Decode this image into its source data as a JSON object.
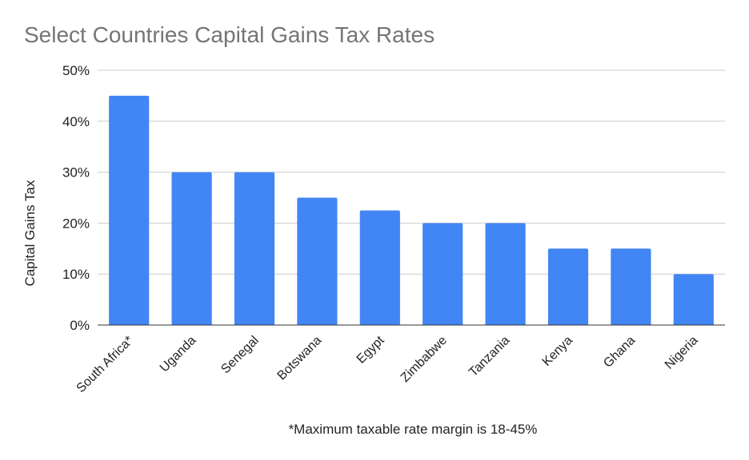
{
  "chart_data": {
    "type": "bar",
    "title": "Select Countries Capital Gains Tax Rates",
    "ylabel": "Capital Gains Tax",
    "xlabel": "",
    "categories": [
      "South Africa*",
      "Uganda",
      "Senegal",
      "Botswana",
      "Egypt",
      "Zimbabwe",
      "Tanzania",
      "Kenya",
      "Ghana",
      "Nigeria"
    ],
    "values": [
      45,
      30,
      30,
      25,
      22.5,
      20,
      20,
      15,
      15,
      10
    ],
    "ylim": [
      0,
      50
    ],
    "yticks": [
      "0%",
      "10%",
      "20%",
      "30%",
      "40%",
      "50%"
    ],
    "ytick_values": [
      0,
      10,
      20,
      30,
      40,
      50
    ],
    "grid": true,
    "legend": "none",
    "bar_color": "#4285f4",
    "footnote": "*Maximum taxable rate margin is 18-45%"
  }
}
